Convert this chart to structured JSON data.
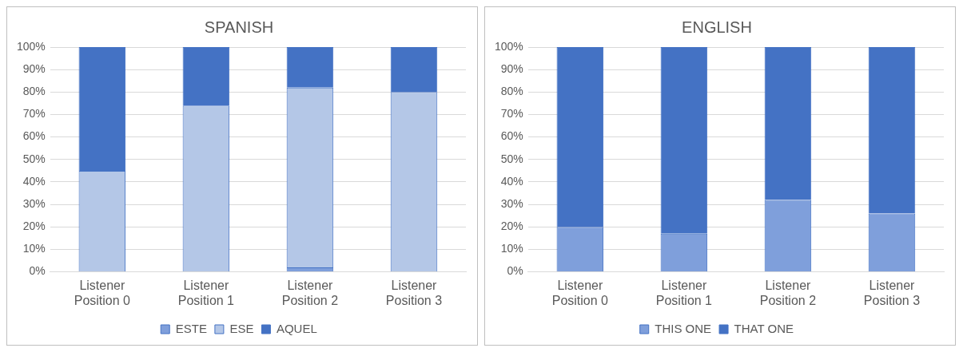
{
  "chart_data": [
    {
      "type": "bar",
      "title": "SPANISH",
      "stacked": true,
      "categories": [
        "Listener Position 0",
        "Listener Position 1",
        "Listener Position 2",
        "Listener Position 3"
      ],
      "series": [
        {
          "name": "ESTE",
          "color": "#7f9fdb",
          "values": [
            0,
            0,
            2,
            0
          ]
        },
        {
          "name": "ESE",
          "color": "#b4c7e7",
          "values": [
            45,
            74,
            80,
            80
          ]
        },
        {
          "name": "AQUEL",
          "color": "#4472c4",
          "values": [
            55,
            26,
            18,
            20
          ]
        }
      ],
      "ylim": [
        0,
        100
      ],
      "yticks": [
        {
          "value": 0,
          "label": "0%"
        },
        {
          "value": 10,
          "label": "10%"
        },
        {
          "value": 20,
          "label": "20%"
        },
        {
          "value": 30,
          "label": "30%"
        },
        {
          "value": 40,
          "label": "40%"
        },
        {
          "value": 50,
          "label": "50%"
        },
        {
          "value": 60,
          "label": "60%"
        },
        {
          "value": 70,
          "label": "70%"
        },
        {
          "value": 80,
          "label": "80%"
        },
        {
          "value": 90,
          "label": "90%"
        },
        {
          "value": 100,
          "label": "100%"
        }
      ],
      "grid": "y",
      "legend": "bottom"
    },
    {
      "type": "bar",
      "title": "ENGLISH",
      "stacked": true,
      "categories": [
        "Listener Position 0",
        "Listener Position 1",
        "Listener Position 2",
        "Listener Position 3"
      ],
      "series": [
        {
          "name": "THIS ONE",
          "color": "#7f9fdb",
          "values": [
            20,
            17,
            32,
            26
          ]
        },
        {
          "name": "THAT ONE",
          "color": "#4472c4",
          "values": [
            80,
            83,
            68,
            74
          ]
        }
      ],
      "ylim": [
        0,
        100
      ],
      "yticks": [
        {
          "value": 0,
          "label": "0%"
        },
        {
          "value": 10,
          "label": "10%"
        },
        {
          "value": 20,
          "label": "20%"
        },
        {
          "value": 30,
          "label": "30%"
        },
        {
          "value": 40,
          "label": "40%"
        },
        {
          "value": 50,
          "label": "50%"
        },
        {
          "value": 60,
          "label": "60%"
        },
        {
          "value": 70,
          "label": "70%"
        },
        {
          "value": 80,
          "label": "80%"
        },
        {
          "value": 90,
          "label": "90%"
        },
        {
          "value": 100,
          "label": "100%"
        }
      ],
      "grid": "y",
      "legend": "bottom"
    }
  ]
}
